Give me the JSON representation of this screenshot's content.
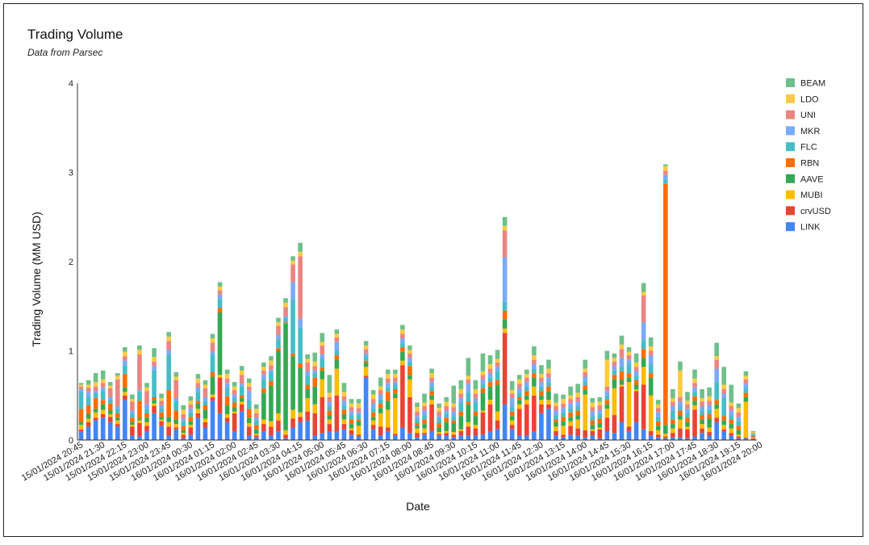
{
  "chart_data": {
    "type": "bar",
    "stacked": true,
    "title": "Trading Volume",
    "subtitle": "Data from Parsec",
    "xlabel": "Date",
    "ylabel": "Trading Volume (MM USD)",
    "ylim": [
      0,
      4
    ],
    "yticks": [
      0,
      1,
      2,
      3,
      4
    ],
    "grid": false,
    "legend_position": "right",
    "bar_count": 93,
    "x_tick_labels": [
      "15/01/2024 20:45",
      "15/01/2024 21:30",
      "15/01/2024 22:15",
      "15/01/2024 23:00",
      "15/01/2024 23:45",
      "16/01/2024 00:30",
      "16/01/2024 01:15",
      "16/01/2024 02:00",
      "16/01/2024 02:45",
      "16/01/2024 03:30",
      "16/01/2024 04:15",
      "16/01/2024 05:00",
      "16/01/2024 05:45",
      "16/01/2024 06:30",
      "16/01/2024 07:15",
      "16/01/2024 08:00",
      "16/01/2024 08:45",
      "16/01/2024 09:30",
      "16/01/2024 10:15",
      "16/01/2024 11:00",
      "16/01/2024 11:45",
      "16/01/2024 12:30",
      "16/01/2024 13:15",
      "16/01/2024 14:00",
      "16/01/2024 14:45",
      "16/01/2024 15:30",
      "16/01/2024 16:15",
      "16/01/2024 17:00",
      "16/01/2024 17:45",
      "16/01/2024 18:30",
      "16/01/2024 19:15",
      "16/01/2024 20:00"
    ],
    "series": [
      {
        "name": "LINK",
        "color": "#4285f4",
        "values": [
          0.1,
          0.15,
          0.22,
          0.25,
          0.2,
          0.15,
          0.45,
          0.05,
          0.04,
          0.1,
          0.3,
          0.16,
          0.05,
          0.12,
          0.02,
          0.06,
          0.25,
          0.14,
          0.44,
          0.3,
          0.2,
          0.1,
          0.32,
          0.05,
          0.03,
          0.1,
          0.05,
          0.1,
          0.02,
          0.14,
          0.2,
          0.22,
          0.05,
          0.08,
          0.1,
          0.1,
          0.12,
          0.06,
          0.04,
          0.7,
          0.12,
          0.05,
          0.1,
          0.05,
          0.14,
          0.08,
          0.03,
          0.06,
          0.1,
          0.05,
          0.05,
          0.03,
          0.05,
          0.05,
          0.05,
          0.06,
          0.1,
          0.12,
          0.4,
          0.12,
          0.05,
          0.05,
          0.1,
          0.3,
          0.35,
          0.05,
          0.03,
          0.06,
          0.05,
          0.03,
          0.05,
          0.02,
          0.1,
          0.08,
          0.2,
          0.1,
          0.2,
          0.12,
          0.05,
          0.03,
          0.02,
          0.03,
          0.03,
          0.02,
          0.04,
          0.08,
          0.05,
          0.2,
          0.1,
          0.05,
          0.02,
          0.02,
          0.01
        ]
      },
      {
        "name": "crvUSD",
        "color": "#ea4335",
        "values": [
          0.02,
          0.05,
          0.03,
          0.04,
          0.06,
          0.03,
          0.05,
          0.1,
          0.15,
          0.06,
          0.08,
          0.05,
          0.1,
          0.02,
          0.04,
          0.08,
          0.05,
          0.06,
          0.04,
          0.4,
          0.05,
          0.2,
          0.08,
          0.1,
          0.02,
          0.08,
          0.1,
          0.12,
          0.04,
          0.1,
          0.06,
          0.1,
          0.25,
          0.4,
          0.08,
          0.4,
          0.06,
          0.05,
          0.02,
          0.02,
          0.05,
          0.1,
          0.04,
          0.02,
          0.7,
          0.4,
          0.05,
          0.02,
          0.3,
          0.02,
          0.03,
          0.03,
          0.05,
          0.1,
          0.08,
          0.25,
          0.3,
          0.1,
          0.8,
          0.05,
          0.3,
          0.35,
          0.4,
          0.1,
          0.05,
          0.05,
          0.03,
          0.1,
          0.08,
          0.08,
          0.05,
          0.1,
          0.15,
          0.2,
          0.4,
          0.05,
          0.35,
          0.5,
          0.05,
          0.03,
          0.02,
          0.05,
          0.1,
          0.1,
          0.3,
          0.05,
          0.04,
          0.05,
          0.02,
          0.03,
          0.02,
          0.01,
          0.01
        ]
      },
      {
        "name": "MUBI",
        "color": "#fbbc04",
        "values": [
          0.05,
          0.04,
          0.06,
          0.05,
          0.03,
          0.04,
          0.04,
          0.02,
          0.03,
          0.04,
          0.03,
          0.02,
          0.05,
          0.04,
          0.02,
          0.03,
          0.05,
          0.04,
          0.03,
          0.03,
          0.04,
          0.02,
          0.03,
          0.04,
          0.02,
          0.05,
          0.06,
          0.08,
          0.05,
          0.1,
          0.05,
          0.15,
          0.1,
          0.2,
          0.05,
          0.3,
          0.05,
          0.02,
          0.1,
          0.1,
          0.05,
          0.15,
          0.2,
          0.4,
          0.05,
          0.2,
          0.05,
          0.05,
          0.05,
          0.02,
          0.02,
          0.03,
          0.02,
          0.05,
          0.04,
          0.02,
          0.05,
          0.1,
          0.05,
          0.05,
          0.05,
          0.05,
          0.1,
          0.05,
          0.05,
          0.05,
          0.1,
          0.05,
          0.1,
          0.4,
          0.02,
          0.02,
          0.1,
          0.3,
          0.02,
          0.5,
          0.02,
          0.2,
          0.4,
          0.05,
          0.03,
          0.05,
          0.1,
          0.03,
          0.05,
          0.05,
          0.05,
          0.1,
          0.05,
          0.05,
          0.02,
          0.4,
          0.01
        ]
      },
      {
        "name": "AAVE",
        "color": "#34a853",
        "values": [
          0.03,
          0.05,
          0.04,
          0.06,
          0.04,
          0.03,
          0.05,
          0.03,
          0.02,
          0.05,
          0.04,
          0.03,
          0.06,
          0.05,
          0.03,
          0.04,
          0.06,
          0.1,
          0.2,
          0.7,
          0.1,
          0.05,
          0.04,
          0.06,
          0.05,
          0.3,
          0.4,
          0.7,
          1.2,
          0.6,
          0.5,
          0.1,
          0.2,
          0.1,
          0.05,
          0.1,
          0.06,
          0.05,
          0.05,
          0.05,
          0.04,
          0.06,
          0.1,
          0.05,
          0.1,
          0.05,
          0.03,
          0.05,
          0.05,
          0.05,
          0.1,
          0.1,
          0.15,
          0.2,
          0.1,
          0.2,
          0.15,
          0.3,
          0.1,
          0.05,
          0.05,
          0.05,
          0.1,
          0.05,
          0.1,
          0.05,
          0.05,
          0.05,
          0.05,
          0.05,
          0.05,
          0.05,
          0.05,
          0.1,
          0.05,
          0.05,
          0.05,
          0.1,
          0.2,
          0.05,
          0.1,
          0.05,
          0.05,
          0.05,
          0.05,
          0.05,
          0.1,
          0.05,
          0.05,
          0.05,
          0.05,
          0.05,
          0.01
        ]
      },
      {
        "name": "RBN",
        "color": "#ff6d01",
        "values": [
          0.15,
          0.1,
          0.12,
          0.05,
          0.08,
          0.05,
          0.15,
          0.05,
          0.2,
          0.05,
          0.03,
          0.05,
          0.3,
          0.1,
          0.05,
          0.05,
          0.03,
          0.05,
          0.05,
          0.05,
          0.1,
          0.05,
          0.03,
          0.1,
          0.05,
          0.05,
          0.05,
          0.03,
          0.01,
          0.03,
          0.05,
          0.05,
          0.1,
          0.03,
          0.05,
          0.05,
          0.05,
          0.05,
          0.02,
          0.02,
          0.05,
          0.05,
          0.1,
          0.05,
          0.05,
          0.1,
          0.03,
          0.05,
          0.05,
          0.05,
          0.05,
          0.03,
          0.05,
          0.03,
          0.05,
          0.05,
          0.05,
          0.05,
          0.1,
          0.05,
          0.03,
          0.05,
          0.05,
          0.05,
          0.05,
          0.03,
          0.05,
          0.05,
          0.05,
          0.05,
          0.05,
          0.05,
          0.05,
          0.05,
          0.1,
          0.05,
          0.05,
          0.1,
          0.05,
          0.05,
          2.7,
          0.05,
          0.05,
          0.05,
          0.05,
          0.05,
          0.05,
          0.05,
          0.05,
          0.05,
          0.05,
          0.05,
          0.01
        ]
      },
      {
        "name": "FLC",
        "color": "#46bdc6",
        "values": [
          0.2,
          0.1,
          0.05,
          0.1,
          0.05,
          0.05,
          0.1,
          0.05,
          0.1,
          0.05,
          0.3,
          0.05,
          0.4,
          0.1,
          0.05,
          0.05,
          0.1,
          0.05,
          0.2,
          0.1,
          0.1,
          0.05,
          0.1,
          0.1,
          0.05,
          0.1,
          0.1,
          0.1,
          0.05,
          0.6,
          0.4,
          0.1,
          0.05,
          0.1,
          0.05,
          0.05,
          0.05,
          0.05,
          0.05,
          0.05,
          0.05,
          0.05,
          0.05,
          0.05,
          0.05,
          0.05,
          0.05,
          0.05,
          0.05,
          0.05,
          0.05,
          0.05,
          0.1,
          0.1,
          0.1,
          0.05,
          0.05,
          0.1,
          0.1,
          0.05,
          0.05,
          0.05,
          0.05,
          0.05,
          0.05,
          0.05,
          0.05,
          0.05,
          0.05,
          0.05,
          0.05,
          0.05,
          0.05,
          0.05,
          0.05,
          0.1,
          0.05,
          0.1,
          0.1,
          0.05,
          0.05,
          0.1,
          0.05,
          0.05,
          0.05,
          0.05,
          0.05,
          0.2,
          0.2,
          0.05,
          0.05,
          0.05,
          0.01
        ]
      },
      {
        "name": "MKR",
        "color": "#7baaf7",
        "values": [
          0.02,
          0.05,
          0.03,
          0.04,
          0.02,
          0.03,
          0.05,
          0.03,
          0.02,
          0.05,
          0.05,
          0.03,
          0.05,
          0.04,
          0.03,
          0.04,
          0.05,
          0.04,
          0.03,
          0.05,
          0.05,
          0.04,
          0.03,
          0.1,
          0.03,
          0.05,
          0.03,
          0.05,
          0.02,
          0.2,
          0.1,
          0.05,
          0.03,
          0.05,
          0.05,
          0.1,
          0.05,
          0.04,
          0.03,
          0.03,
          0.05,
          0.05,
          0.05,
          0.03,
          0.05,
          0.04,
          0.03,
          0.05,
          0.05,
          0.03,
          0.03,
          0.05,
          0.05,
          0.1,
          0.05,
          0.05,
          0.05,
          0.05,
          0.5,
          0.1,
          0.05,
          0.05,
          0.05,
          0.05,
          0.05,
          0.05,
          0.05,
          0.05,
          0.05,
          0.05,
          0.05,
          0.05,
          0.05,
          0.05,
          0.1,
          0.05,
          0.05,
          0.2,
          0.1,
          0.05,
          0.05,
          0.05,
          0.05,
          0.05,
          0.05,
          0.05,
          0.05,
          0.15,
          0.05,
          0.05,
          0.05,
          0.05,
          0.01
        ]
      },
      {
        "name": "UNI",
        "color": "#ea8582",
        "values": [
          0.03,
          0.05,
          0.05,
          0.05,
          0.1,
          0.3,
          0.05,
          0.1,
          0.4,
          0.15,
          0.05,
          0.05,
          0.1,
          0.2,
          0.05,
          0.05,
          0.05,
          0.1,
          0.1,
          0.05,
          0.05,
          0.05,
          0.1,
          0.05,
          0.05,
          0.05,
          0.05,
          0.1,
          0.1,
          0.2,
          0.7,
          0.1,
          0.05,
          0.1,
          0.05,
          0.05,
          0.05,
          0.05,
          0.05,
          0.05,
          0.05,
          0.05,
          0.05,
          0.05,
          0.05,
          0.05,
          0.05,
          0.05,
          0.05,
          0.05,
          0.05,
          0.05,
          0.05,
          0.05,
          0.05,
          0.05,
          0.05,
          0.05,
          0.3,
          0.05,
          0.05,
          0.05,
          0.05,
          0.05,
          0.05,
          0.05,
          0.05,
          0.05,
          0.05,
          0.05,
          0.05,
          0.05,
          0.05,
          0.05,
          0.1,
          0.05,
          0.05,
          0.3,
          0.05,
          0.05,
          0.05,
          0.05,
          0.05,
          0.05,
          0.05,
          0.05,
          0.05,
          0.1,
          0.05,
          0.05,
          0.05,
          0.05,
          0.01
        ]
      },
      {
        "name": "LDO",
        "color": "#f9cb42",
        "values": [
          0.02,
          0.03,
          0.05,
          0.04,
          0.03,
          0.04,
          0.05,
          0.03,
          0.05,
          0.04,
          0.05,
          0.03,
          0.05,
          0.04,
          0.05,
          0.04,
          0.05,
          0.04,
          0.05,
          0.04,
          0.05,
          0.04,
          0.05,
          0.04,
          0.05,
          0.04,
          0.05,
          0.04,
          0.05,
          0.04,
          0.05,
          0.04,
          0.05,
          0.04,
          0.05,
          0.04,
          0.05,
          0.04,
          0.05,
          0.04,
          0.05,
          0.04,
          0.05,
          0.04,
          0.05,
          0.04,
          0.05,
          0.04,
          0.05,
          0.04,
          0.05,
          0.04,
          0.05,
          0.04,
          0.05,
          0.04,
          0.05,
          0.04,
          0.05,
          0.04,
          0.05,
          0.04,
          0.05,
          0.04,
          0.05,
          0.04,
          0.05,
          0.04,
          0.05,
          0.04,
          0.05,
          0.04,
          0.3,
          0.04,
          0.05,
          0.04,
          0.05,
          0.04,
          0.05,
          0.04,
          0.05,
          0.04,
          0.3,
          0.04,
          0.05,
          0.04,
          0.05,
          0.04,
          0.05,
          0.04,
          0.05,
          0.04,
          0.01
        ]
      },
      {
        "name": "BEAM",
        "color": "#6fbf8a",
        "values": [
          0.02,
          0.05,
          0.1,
          0.1,
          0.04,
          0.03,
          0.05,
          0.05,
          0.05,
          0.05,
          0.1,
          0.05,
          0.05,
          0.05,
          0.05,
          0.05,
          0.05,
          0.05,
          0.05,
          0.05,
          0.05,
          0.05,
          0.05,
          0.05,
          0.05,
          0.05,
          0.05,
          0.05,
          0.05,
          0.05,
          0.1,
          0.05,
          0.1,
          0.1,
          0.2,
          0.05,
          0.1,
          0.05,
          0.05,
          0.05,
          0.05,
          0.1,
          0.05,
          0.05,
          0.05,
          0.05,
          0.05,
          0.1,
          0.05,
          0.05,
          0.05,
          0.2,
          0.1,
          0.2,
          0.1,
          0.2,
          0.1,
          0.1,
          0.1,
          0.1,
          0.05,
          0.05,
          0.1,
          0.1,
          0.1,
          0.1,
          0.05,
          0.1,
          0.1,
          0.1,
          0.05,
          0.05,
          0.1,
          0.05,
          0.1,
          0.05,
          0.1,
          0.1,
          0.1,
          0.05,
          0.02,
          0.1,
          0.1,
          0.1,
          0.1,
          0.1,
          0.1,
          0.15,
          0.2,
          0.2,
          0.05,
          0.05,
          0.01
        ]
      }
    ]
  }
}
